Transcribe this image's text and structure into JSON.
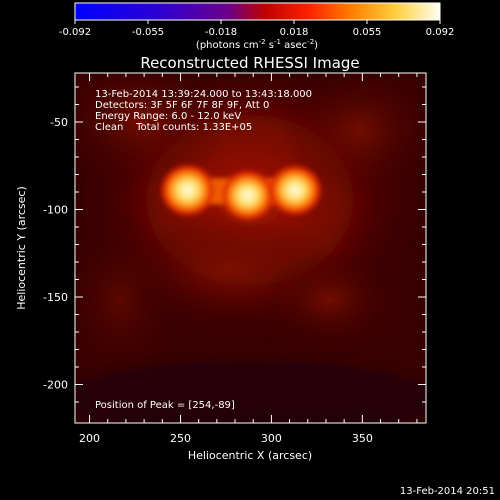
{
  "chart_data": {
    "type": "heatmap",
    "title": "Reconstructed RHESSI Image",
    "xlabel": "Heliocentric X (arcsec)",
    "ylabel": "Heliocentric Y (arcsec)",
    "xlim": [
      192,
      385
    ],
    "ylim": [
      -222,
      -22
    ],
    "xticks": [
      200,
      250,
      300,
      350
    ],
    "yticks": [
      -50,
      -100,
      -150,
      -200
    ],
    "colorbar": {
      "range": [
        -0.092,
        0.092
      ],
      "ticks": [
        "-0.092",
        "-0.055",
        "-0.018",
        "0.018",
        "0.055",
        "0.092"
      ],
      "label": "(photons cm",
      "label_sup1": "-2",
      "label_mid": " s",
      "label_sup2": "-1",
      "label_end": " asec",
      "label_sup3": "-2",
      "label_close": ")"
    },
    "annotations": {
      "time_range": "13-Feb-2014 13:39:24.000 to 13:43:18.000",
      "detectors": "Detectors: 3F 5F 6F 7F 8F 9F, Att 0",
      "energy": "Energy Range: 6.0 - 12.0 keV",
      "method": "Clean    Total counts: 1.33E+05",
      "peak": "Position of Peak = [254,-89]"
    },
    "sources": [
      {
        "x": 254,
        "y": -89,
        "value": 0.092
      },
      {
        "x": 287,
        "y": -92,
        "value": 0.085
      },
      {
        "x": 313,
        "y": -89,
        "value": 0.083
      }
    ],
    "timestamp": "13-Feb-2014 20:51",
    "colors": {
      "background": "#000000",
      "map_base": "#2a0000",
      "halo": "#8a0c00",
      "peak": "#fffbd0"
    }
  }
}
